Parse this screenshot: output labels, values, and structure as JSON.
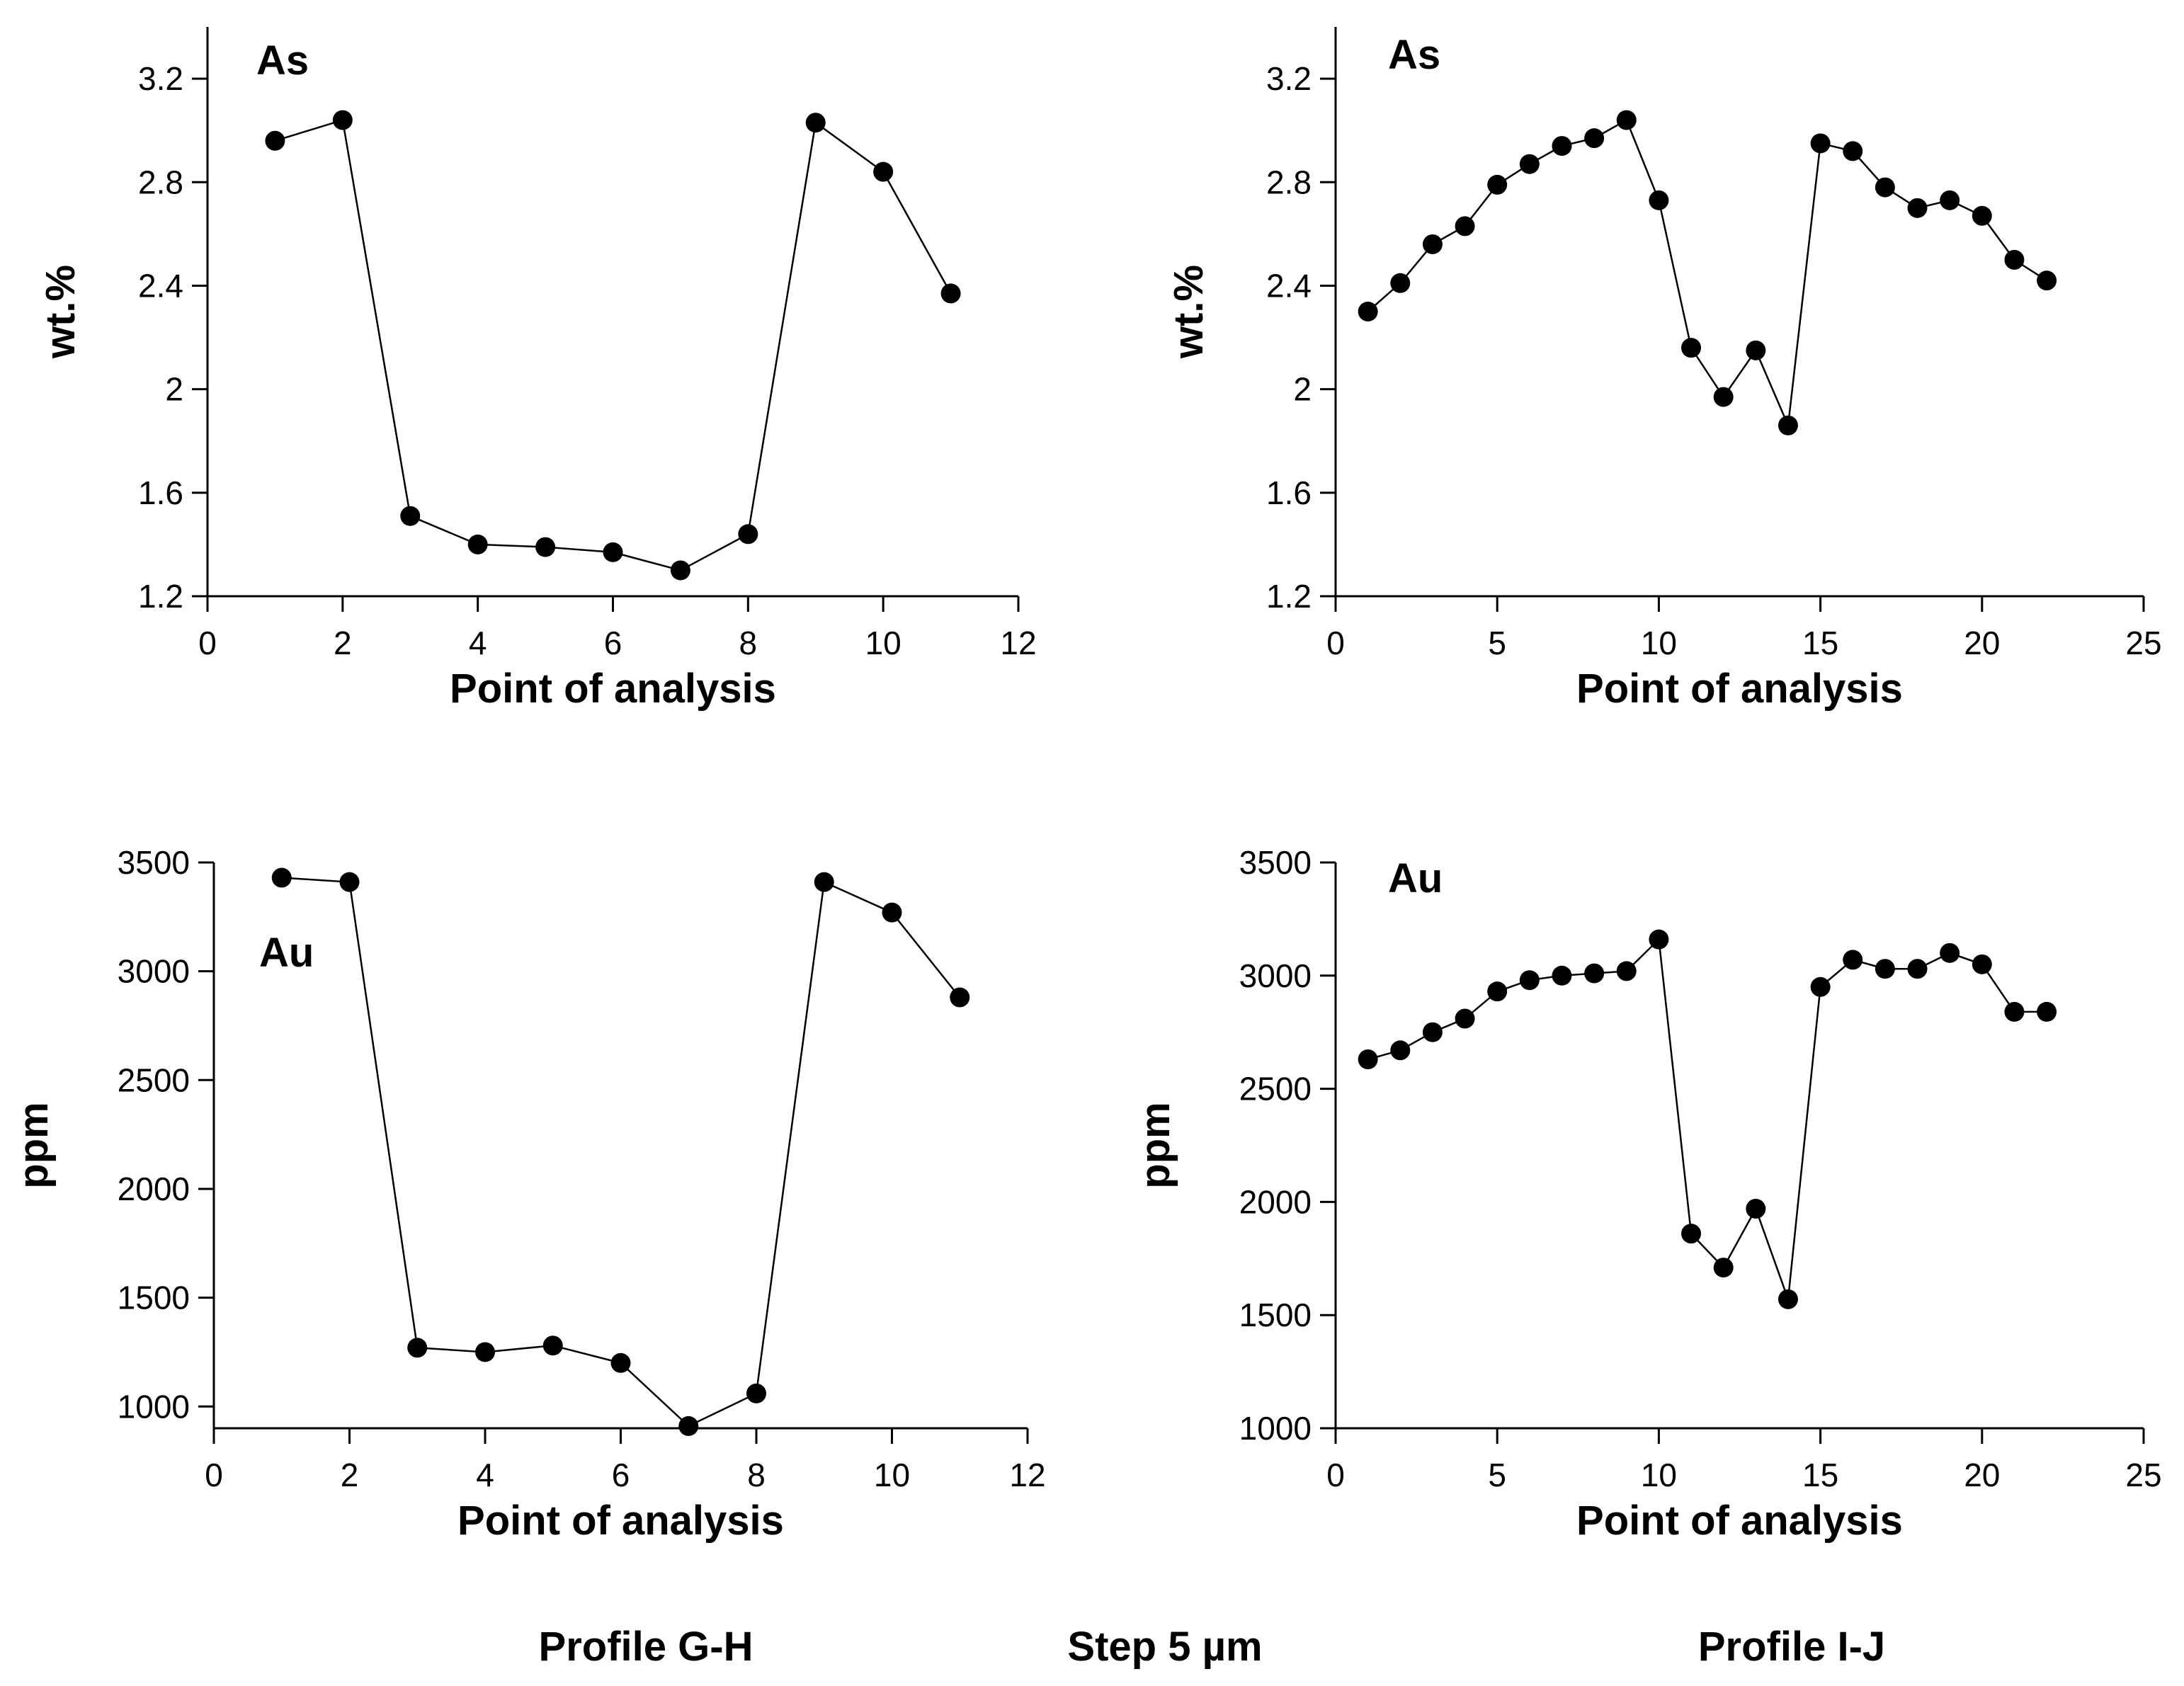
{
  "chart_data": [
    {
      "type": "line",
      "panel": "top-left",
      "element_label": "As",
      "xlabel": "Point of analysis",
      "ylabel": "wt.%",
      "xlim": [
        0,
        12
      ],
      "ylim": [
        1.2,
        3.4
      ],
      "xticks": [
        0,
        2,
        4,
        6,
        8,
        10,
        12
      ],
      "yticks": [
        1.2,
        1.6,
        2,
        2.4,
        2.8,
        3.2
      ],
      "xtick_labels": [
        "0",
        "2",
        "4",
        "6",
        "8",
        "10",
        "12"
      ],
      "ytick_labels": [
        "1.2",
        "1.6",
        "2",
        "2.4",
        "2.8",
        "3.2"
      ],
      "x": [
        1,
        2,
        3,
        4,
        5,
        6,
        7,
        8,
        9,
        10,
        11
      ],
      "values": [
        2.96,
        3.04,
        1.51,
        1.4,
        1.39,
        1.37,
        1.3,
        1.44,
        3.03,
        2.84,
        2.37
      ]
    },
    {
      "type": "line",
      "panel": "top-right",
      "element_label": "As",
      "xlabel": "Point of analysis",
      "ylabel": "wt.%",
      "xlim": [
        0,
        25
      ],
      "ylim": [
        1.2,
        3.4
      ],
      "xticks": [
        0,
        5,
        10,
        15,
        20,
        25
      ],
      "yticks": [
        1.2,
        1.6,
        2,
        2.4,
        2.8,
        3.2
      ],
      "xtick_labels": [
        "0",
        "5",
        "10",
        "15",
        "20",
        "25"
      ],
      "ytick_labels": [
        "1.2",
        "1.6",
        "2",
        "2.4",
        "2.8",
        "3.2"
      ],
      "x": [
        1,
        2,
        3,
        4,
        5,
        6,
        7,
        8,
        9,
        10,
        11,
        12,
        13,
        14,
        15,
        16,
        17,
        18,
        19,
        20,
        21,
        22
      ],
      "values": [
        2.3,
        2.41,
        2.56,
        2.63,
        2.79,
        2.87,
        2.94,
        2.97,
        3.04,
        2.73,
        2.16,
        1.97,
        2.15,
        1.86,
        2.95,
        2.92,
        2.78,
        2.7,
        2.73,
        2.67,
        2.5,
        2.42
      ]
    },
    {
      "type": "line",
      "panel": "bottom-left",
      "element_label": "Au",
      "xlabel": "Point of analysis",
      "ylabel": "ppm",
      "xlim": [
        0,
        12
      ],
      "ylim": [
        900,
        3500
      ],
      "xticks": [
        0,
        2,
        4,
        6,
        8,
        10,
        12
      ],
      "yticks": [
        1000,
        1500,
        2000,
        2500,
        3000,
        3500
      ],
      "xtick_labels": [
        "0",
        "2",
        "4",
        "6",
        "8",
        "10",
        "12"
      ],
      "ytick_labels": [
        "1000",
        "1500",
        "2000",
        "2500",
        "3000",
        "3500"
      ],
      "x": [
        1,
        2,
        3,
        4,
        5,
        6,
        7,
        8,
        9,
        10,
        11
      ],
      "values": [
        3430,
        3410,
        1270,
        1250,
        1280,
        1200,
        910,
        1060,
        3410,
        3270,
        2880
      ]
    },
    {
      "type": "line",
      "panel": "bottom-right",
      "element_label": "Au",
      "xlabel": "Point of analysis",
      "ylabel": "ppm",
      "xlim": [
        0,
        25
      ],
      "ylim": [
        1000,
        3500
      ],
      "xticks": [
        0,
        5,
        10,
        15,
        20,
        25
      ],
      "yticks": [
        1000,
        1500,
        2000,
        2500,
        3000,
        3500
      ],
      "xtick_labels": [
        "0",
        "5",
        "10",
        "15",
        "20",
        "25"
      ],
      "ytick_labels": [
        "1000",
        "1500",
        "2000",
        "2500",
        "3000",
        "3500"
      ],
      "x": [
        1,
        2,
        3,
        4,
        5,
        6,
        7,
        8,
        9,
        10,
        11,
        12,
        13,
        14,
        15,
        16,
        17,
        18,
        19,
        20,
        21,
        22
      ],
      "values": [
        2630,
        2670,
        2750,
        2810,
        2930,
        2980,
        3000,
        3010,
        3020,
        3160,
        1860,
        1710,
        1970,
        1570,
        2950,
        3070,
        3030,
        3030,
        3100,
        3050,
        2840,
        2840
      ]
    }
  ],
  "footer": {
    "profile_left": "Profile G-H",
    "step": "Step 5 µm",
    "profile_right": "Profile I-J"
  }
}
